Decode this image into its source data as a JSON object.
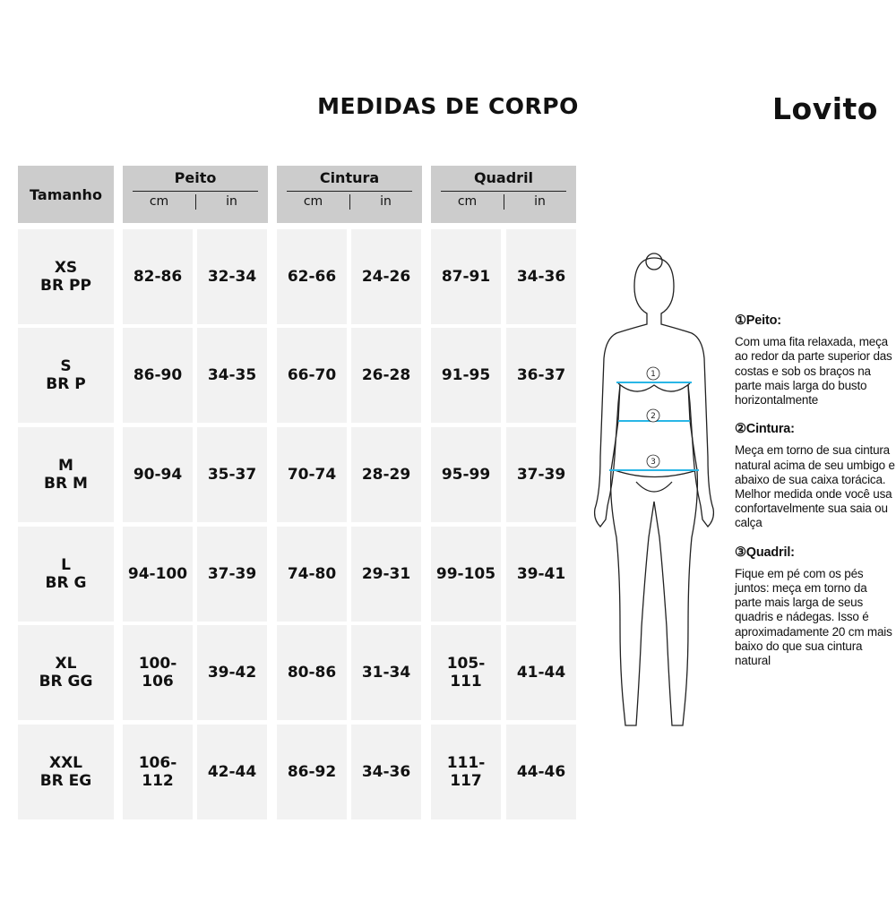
{
  "title": "MEDIDAS DE CORPO",
  "brand": "Lovito",
  "table": {
    "size_header": "Tamanho",
    "groups": [
      {
        "label": "Peito",
        "units": [
          "cm",
          "in"
        ]
      },
      {
        "label": "Cintura",
        "units": [
          "cm",
          "in"
        ]
      },
      {
        "label": "Quadril",
        "units": [
          "cm",
          "in"
        ]
      }
    ],
    "rows": [
      {
        "size": "XS",
        "br": "BR PP",
        "values": [
          "82-86",
          "32-34",
          "62-66",
          "24-26",
          "87-91",
          "34-36"
        ]
      },
      {
        "size": "S",
        "br": "BR P",
        "values": [
          "86-90",
          "34-35",
          "66-70",
          "26-28",
          "91-95",
          "36-37"
        ]
      },
      {
        "size": "M",
        "br": "BR M",
        "values": [
          "90-94",
          "35-37",
          "70-74",
          "28-29",
          "95-99",
          "37-39"
        ]
      },
      {
        "size": "L",
        "br": "BR G",
        "values": [
          "94-100",
          "37-39",
          "74-80",
          "29-31",
          "99-105",
          "39-41"
        ]
      },
      {
        "size": "XL",
        "br": "BR GG",
        "values": [
          "100-106",
          "39-42",
          "80-86",
          "31-34",
          "105-111",
          "41-44"
        ]
      },
      {
        "size": "XXL",
        "br": "BR EG",
        "values": [
          "106-112",
          "42-44",
          "86-92",
          "34-36",
          "111-117",
          "44-46"
        ]
      }
    ]
  },
  "figure": {
    "markers": [
      "1",
      "2",
      "3"
    ],
    "measure_line_color": "#29b6e6"
  },
  "notes": [
    {
      "title": "①Peito:",
      "text": "Com uma fita relaxada, meça ao redor da parte superior das costas e sob os braços na parte mais larga do busto horizontalmente"
    },
    {
      "title": "②Cintura:",
      "text": "Meça em torno de sua cintura natural acima de seu umbigo e abaixo de sua caixa torácica. Melhor medida onde você usa confortavelmente sua saia ou calça"
    },
    {
      "title": "③Quadril:",
      "text": "Fique em pé com os pés juntos: meça em torno da parte mais larga de seus quadris e nádegas. Isso é aproximadamente 20 cm mais baixo do que sua cintura natural"
    }
  ]
}
